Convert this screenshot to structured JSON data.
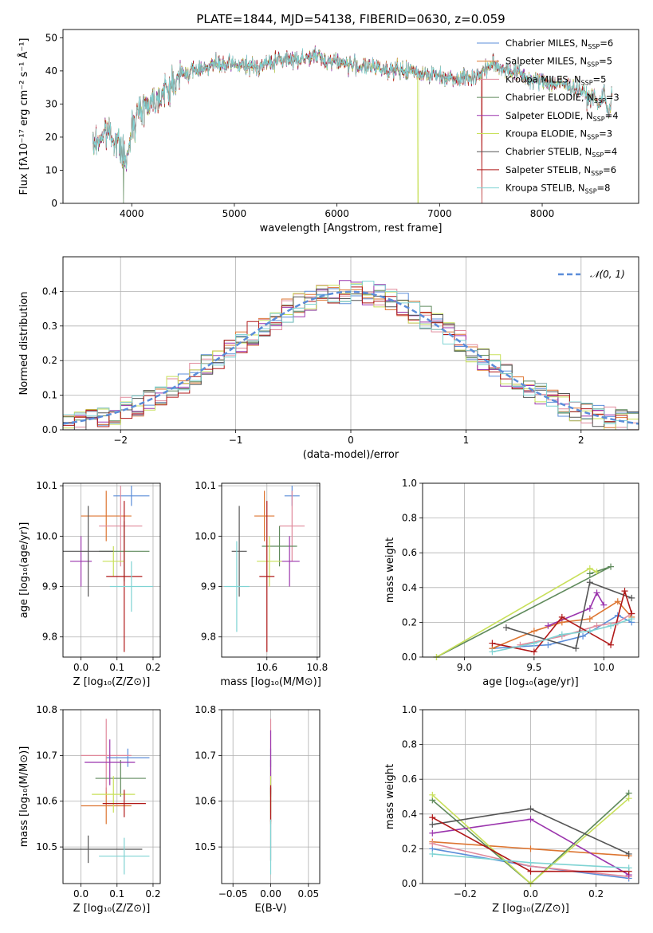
{
  "title": "PLATE=1844, MJD=54138, FIBERID=0630, z=0.059",
  "colors": [
    "#5b8dd9",
    "#dd7531",
    "#e08a9c",
    "#5f8a5c",
    "#9b35ad",
    "#c8e05a",
    "#555555",
    "#b01818",
    "#7fd3d3"
  ],
  "legend_spec": {
    "labels": [
      "Chabrier MILES",
      "Salpeter MILES",
      "Kroupa MILES",
      "Chabrier ELODIE",
      "Salpeter ELODIE",
      "Kroupa ELODIE",
      "Chabrier STELIB",
      "Salpeter STELIB",
      "Kroupa STELIB"
    ],
    "nssp_label": "N",
    "nssp_sub": "SSP",
    "nssp": [
      "6",
      "5",
      "5",
      "3",
      "4",
      "3",
      "4",
      "6",
      "8"
    ]
  },
  "hist_legend": "𝒩(0, 1)",
  "chart_data": [
    {
      "id": "spectrum",
      "type": "line",
      "xlabel": "wavelength [Angstrom, rest frame]",
      "ylabel": "Flux [fλ10⁻¹⁷ erg cm⁻² s⁻¹ Å⁻¹]",
      "xlim": [
        3330,
        8940
      ],
      "ylim": [
        0,
        52.5
      ],
      "xticks": [
        4000,
        5000,
        6000,
        7000,
        8000
      ],
      "yticks": [
        0,
        10,
        20,
        30,
        40,
        50
      ],
      "continuum": [
        [
          3620,
          17
        ],
        [
          3700,
          20
        ],
        [
          3780,
          22
        ],
        [
          3860,
          18
        ],
        [
          3920,
          15
        ],
        [
          3960,
          12
        ],
        [
          4000,
          24
        ],
        [
          4100,
          29
        ],
        [
          4200,
          31
        ],
        [
          4300,
          33
        ],
        [
          4400,
          36
        ],
        [
          4500,
          39
        ],
        [
          4600,
          40
        ],
        [
          4700,
          41
        ],
        [
          4800,
          42
        ],
        [
          4900,
          41.5
        ],
        [
          5000,
          42
        ],
        [
          5100,
          41.5
        ],
        [
          5200,
          41
        ],
        [
          5300,
          42
        ],
        [
          5400,
          43
        ],
        [
          5500,
          43.5
        ],
        [
          5600,
          43.5
        ],
        [
          5700,
          44
        ],
        [
          5800,
          44.5
        ],
        [
          5900,
          43
        ],
        [
          6000,
          43
        ],
        [
          6100,
          42
        ],
        [
          6200,
          41.5
        ],
        [
          6300,
          41
        ],
        [
          6400,
          41
        ],
        [
          6500,
          40.5
        ],
        [
          6600,
          40
        ],
        [
          6700,
          40
        ],
        [
          6800,
          39.5
        ],
        [
          6900,
          39
        ],
        [
          7000,
          38.5
        ],
        [
          7100,
          38
        ],
        [
          7200,
          38
        ],
        [
          7300,
          38
        ],
        [
          7400,
          39
        ],
        [
          7500,
          42
        ],
        [
          7600,
          41
        ],
        [
          7700,
          40
        ],
        [
          7800,
          39
        ],
        [
          7900,
          37
        ],
        [
          8000,
          37
        ],
        [
          8100,
          36
        ],
        [
          8200,
          36
        ],
        [
          8300,
          35
        ],
        [
          8400,
          34
        ],
        [
          8450,
          31
        ],
        [
          8500,
          33
        ],
        [
          8550,
          29
        ],
        [
          8600,
          34
        ],
        [
          8650,
          27
        ],
        [
          8680,
          33
        ]
      ],
      "spikes": [
        {
          "x": 3920,
          "color_index": 3
        },
        {
          "x": 6790,
          "color_index": 5
        },
        {
          "x": 7412,
          "color_index": 7
        }
      ],
      "legend_position": "top-right"
    },
    {
      "id": "residual-histogram",
      "type": "histogram",
      "xlabel": "(data-model)/error",
      "ylabel": "Normed distribution",
      "xlim": [
        -2.5,
        2.5
      ],
      "ylim": [
        0,
        0.5
      ],
      "xticks": [
        -2,
        -1,
        0,
        1,
        2
      ],
      "yticks": [
        0,
        0.1,
        0.2,
        0.3,
        0.4
      ],
      "bin_width": 0.1,
      "reference": {
        "name": "𝒩(0, 1)",
        "mean": 0,
        "sigma": 1
      },
      "grid": true,
      "legend_position": "top-right"
    },
    {
      "id": "age-vs-metallicity",
      "type": "scatter",
      "xlabel": "Z [log₁₀(Z/Z⊙)]",
      "ylabel": "age  [log₁₀(age/yr)]",
      "xlim": [
        -0.05,
        0.22
      ],
      "ylim": [
        9.76,
        10.105
      ],
      "xticks": [
        0,
        0.1,
        0.2
      ],
      "yticks": [
        9.8,
        9.9,
        10.0,
        10.1
      ],
      "points": [
        {
          "x": 0.14,
          "y": 10.08,
          "xerr": 0.05,
          "yerr": 0.02
        },
        {
          "x": 0.07,
          "y": 10.04,
          "xerr": 0.07,
          "yerr": 0.05
        },
        {
          "x": 0.11,
          "y": 10.02,
          "xerr": 0.06,
          "yerr": 0.08
        },
        {
          "x": 0.12,
          "y": 9.97,
          "xerr": 0.07,
          "yerr": 0.06
        },
        {
          "x": 0.0,
          "y": 9.95,
          "xerr": 0.03,
          "yerr": 0.05
        },
        {
          "x": 0.09,
          "y": 9.95,
          "xerr": 0.03,
          "yerr": 0.03
        },
        {
          "x": 0.02,
          "y": 9.97,
          "xerr": 0.07,
          "yerr": 0.09
        },
        {
          "x": 0.12,
          "y": 9.92,
          "xerr": 0.05,
          "yerr": 0.15
        },
        {
          "x": 0.14,
          "y": 9.9,
          "xerr": 0.06,
          "yerr": 0.05
        }
      ]
    },
    {
      "id": "age-vs-mass",
      "type": "scatter",
      "xlabel": "mass [log₁₀(M/M⊙)]",
      "ylabel": "",
      "xlim": [
        10.42,
        10.81
      ],
      "ylim": [
        9.76,
        10.105
      ],
      "xticks": [
        10.6,
        10.8
      ],
      "yticks": [
        9.8,
        9.9,
        10.0,
        10.1
      ],
      "points": [
        {
          "x": 10.7,
          "y": 10.08,
          "xerr": 0.03,
          "yerr": 0.02
        },
        {
          "x": 10.59,
          "y": 10.04,
          "xerr": 0.04,
          "yerr": 0.05
        },
        {
          "x": 10.7,
          "y": 10.02,
          "xerr": 0.05,
          "yerr": 0.07
        },
        {
          "x": 10.65,
          "y": 9.98,
          "xerr": 0.07,
          "yerr": 0.04
        },
        {
          "x": 10.69,
          "y": 9.95,
          "xerr": 0.04,
          "yerr": 0.05
        },
        {
          "x": 10.61,
          "y": 9.95,
          "xerr": 0.05,
          "yerr": 0.05
        },
        {
          "x": 10.49,
          "y": 9.97,
          "xerr": 0.03,
          "yerr": 0.09
        },
        {
          "x": 10.6,
          "y": 9.92,
          "xerr": 0.03,
          "yerr": 0.15
        },
        {
          "x": 10.48,
          "y": 9.9,
          "xerr": 0.05,
          "yerr": 0.09
        }
      ]
    },
    {
      "id": "mass-weight-vs-age",
      "type": "line",
      "xlabel": "age  [log₁₀(age/yr)]",
      "ylabel": "mass weight",
      "xlim": [
        8.7,
        10.25
      ],
      "ylim": [
        0,
        1.0
      ],
      "xticks": [
        9.0,
        9.5,
        10.0
      ],
      "yticks": [
        0,
        0.2,
        0.4,
        0.6,
        0.8,
        1.0
      ],
      "series": [
        {
          "x": [
            9.2,
            9.6,
            9.85,
            10.1,
            10.2
          ],
          "y": [
            0.05,
            0.07,
            0.12,
            0.24,
            0.2
          ]
        },
        {
          "x": [
            9.2,
            9.5,
            9.7,
            9.9,
            10.1,
            10.2
          ],
          "y": [
            0.05,
            0.15,
            0.2,
            0.22,
            0.32,
            0.23
          ]
        },
        {
          "x": [
            9.4,
            9.7,
            9.95,
            10.1,
            10.2
          ],
          "y": [
            0.07,
            0.12,
            0.18,
            0.2,
            0.25
          ]
        },
        {
          "x": [
            8.8,
            10.05,
            9.9
          ],
          "y": [
            0.0,
            0.52,
            0.48
          ]
        },
        {
          "x": [
            9.6,
            9.9,
            9.95,
            10.0
          ],
          "y": [
            0.18,
            0.28,
            0.37,
            0.3
          ]
        },
        {
          "x": [
            8.8,
            9.9,
            9.95
          ],
          "y": [
            0.0,
            0.51,
            0.49
          ]
        },
        {
          "x": [
            9.3,
            9.8,
            9.9,
            10.2
          ],
          "y": [
            0.17,
            0.05,
            0.43,
            0.34
          ]
        },
        {
          "x": [
            9.2,
            9.5,
            9.7,
            10.05,
            10.15,
            10.2
          ],
          "y": [
            0.08,
            0.03,
            0.23,
            0.07,
            0.38,
            0.25
          ]
        },
        {
          "x": [
            9.2,
            9.5,
            9.7,
            9.9,
            10.05,
            10.2
          ],
          "y": [
            0.03,
            0.08,
            0.13,
            0.15,
            0.18,
            0.22
          ]
        }
      ]
    },
    {
      "id": "mass-vs-metallicity",
      "type": "scatter",
      "xlabel": "Z [log₁₀(Z/Z⊙)]",
      "ylabel": "mass [log₁₀(M/M⊙)]",
      "xlim": [
        -0.05,
        0.22
      ],
      "ylim": [
        10.42,
        10.8
      ],
      "xticks": [
        0,
        0.1,
        0.2
      ],
      "yticks": [
        10.5,
        10.6,
        10.7,
        10.8
      ],
      "points": [
        {
          "x": 0.13,
          "y": 10.695,
          "xerr": 0.06,
          "yerr": 0.02
        },
        {
          "x": 0.07,
          "y": 10.59,
          "xerr": 0.07,
          "yerr": 0.04
        },
        {
          "x": 0.07,
          "y": 10.7,
          "xerr": 0.07,
          "yerr": 0.08
        },
        {
          "x": 0.11,
          "y": 10.65,
          "xerr": 0.07,
          "yerr": 0.04
        },
        {
          "x": 0.08,
          "y": 10.685,
          "xerr": 0.07,
          "yerr": 0.05
        },
        {
          "x": 0.09,
          "y": 10.615,
          "xerr": 0.06,
          "yerr": 0.04
        },
        {
          "x": 0.02,
          "y": 10.495,
          "xerr": 0.15,
          "yerr": 0.03
        },
        {
          "x": 0.12,
          "y": 10.595,
          "xerr": 0.06,
          "yerr": 0.03
        },
        {
          "x": 0.12,
          "y": 10.48,
          "xerr": 0.07,
          "yerr": 0.04
        }
      ]
    },
    {
      "id": "mass-vs-ebv",
      "type": "scatter",
      "xlabel": "E(B-V)",
      "ylabel": "",
      "xlim": [
        -0.065,
        0.065
      ],
      "ylim": [
        10.42,
        10.8
      ],
      "xticks": [
        -0.05,
        0.0,
        0.05
      ],
      "yticks": [
        10.5,
        10.6,
        10.7,
        10.8
      ],
      "points": [
        {
          "x": 0,
          "y": 10.695,
          "xerr": 0,
          "yerr": 0.02
        },
        {
          "x": 0,
          "y": 10.59,
          "xerr": 0,
          "yerr": 0.04
        },
        {
          "x": 0,
          "y": 10.7,
          "xerr": 0,
          "yerr": 0.08
        },
        {
          "x": 0,
          "y": 10.65,
          "xerr": 0,
          "yerr": 0.04
        },
        {
          "x": 0,
          "y": 10.685,
          "xerr": 0,
          "yerr": 0.07
        },
        {
          "x": 0,
          "y": 10.615,
          "xerr": 0,
          "yerr": 0.04
        },
        {
          "x": 0,
          "y": 10.55,
          "xerr": 0,
          "yerr": 0.08
        },
        {
          "x": 0,
          "y": 10.595,
          "xerr": 0,
          "yerr": 0.04
        },
        {
          "x": 0,
          "y": 10.5,
          "xerr": 0,
          "yerr": 0.06
        }
      ]
    },
    {
      "id": "mass-weight-vs-metallicity",
      "type": "line",
      "xlabel": "Z [log₁₀(Z/Z⊙)]",
      "ylabel": "mass weight",
      "xlim": [
        -0.33,
        0.33
      ],
      "ylim": [
        0,
        1.0
      ],
      "xticks": [
        -0.2,
        0.0,
        0.2
      ],
      "yticks": [
        0,
        0.2,
        0.4,
        0.6,
        0.8,
        1.0
      ],
      "series": [
        {
          "x": [
            -0.3,
            0.0,
            0.3
          ],
          "y": [
            0.2,
            0.1,
            0.03
          ]
        },
        {
          "x": [
            -0.3,
            0.0,
            0.3
          ],
          "y": [
            0.24,
            0.2,
            0.16
          ]
        },
        {
          "x": [
            -0.3,
            0.0,
            0.3
          ],
          "y": [
            0.23,
            0.1,
            0.04
          ]
        },
        {
          "x": [
            -0.3,
            0.0,
            0.3
          ],
          "y": [
            0.48,
            0.0,
            0.52
          ]
        },
        {
          "x": [
            -0.3,
            0.0,
            0.3
          ],
          "y": [
            0.29,
            0.37,
            0.05
          ]
        },
        {
          "x": [
            -0.3,
            0.0,
            0.3
          ],
          "y": [
            0.51,
            0.0,
            0.49
          ]
        },
        {
          "x": [
            -0.3,
            0.0,
            0.3
          ],
          "y": [
            0.34,
            0.43,
            0.17
          ]
        },
        {
          "x": [
            -0.3,
            0.0,
            0.3
          ],
          "y": [
            0.38,
            0.07,
            0.07
          ]
        },
        {
          "x": [
            -0.3,
            0.0,
            0.3
          ],
          "y": [
            0.17,
            0.12,
            0.09
          ]
        }
      ]
    }
  ]
}
